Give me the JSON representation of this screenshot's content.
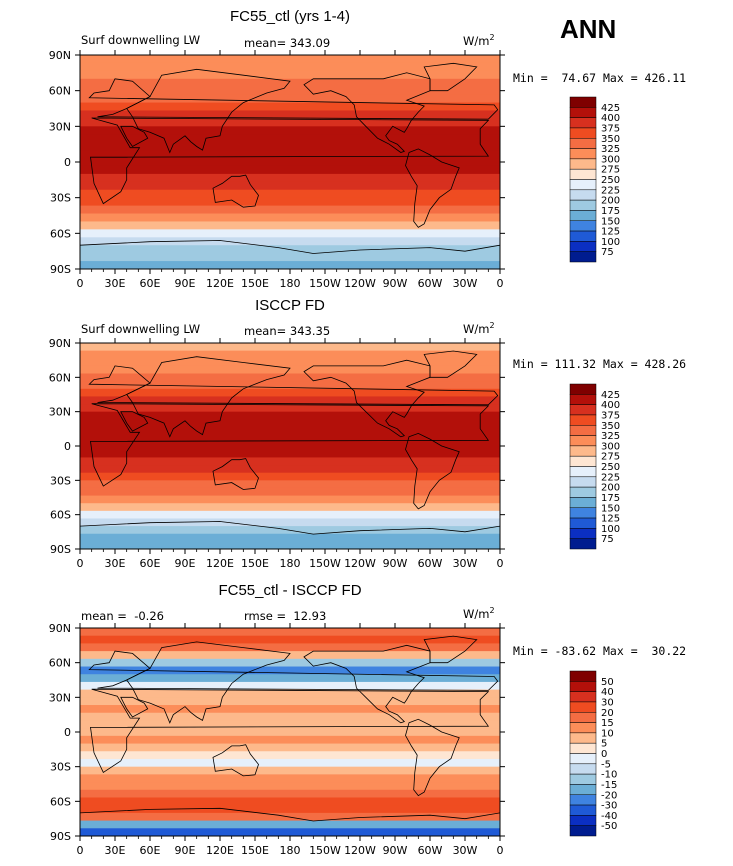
{
  "season": "ANN",
  "panels": [
    {
      "title": "FC55_ctl (yrs 1-4)",
      "left_label": "Surf downwelling LW",
      "center_label": "mean= 343.09",
      "units": "W/m",
      "units_sup": "2",
      "minmax": "Min =  74.67 Max = 426.11",
      "colorbar": {
        "labels": [
          "425",
          "400",
          "375",
          "350",
          "325",
          "300",
          "275",
          "250",
          "225",
          "200",
          "175",
          "150",
          "125",
          "100",
          "75"
        ],
        "colors": [
          "#7f0000",
          "#b3100a",
          "#d7301f",
          "#ef4c21",
          "#f46d43",
          "#fc8d59",
          "#fdb98b",
          "#fee6d3",
          "#e6f0fb",
          "#c6dbef",
          "#9ecae1",
          "#6baed6",
          "#3f83e0",
          "#1f5ad6",
          "#0b2fc2",
          "#001c8f"
        ]
      },
      "zonal_profile": [
        300,
        305,
        315,
        325,
        335,
        345,
        360,
        375,
        390,
        400,
        405,
        410,
        410,
        405,
        400,
        395,
        385,
        370,
        350,
        330,
        305,
        280,
        240,
        210,
        190,
        175,
        170
      ]
    },
    {
      "title": "ISCCP FD",
      "left_label": "Surf downwelling LW",
      "center_label": "mean= 343.35",
      "units": "W/m",
      "units_sup": "2",
      "minmax": "Min = 111.32 Max = 428.26",
      "colorbar": {
        "labels": [
          "425",
          "400",
          "375",
          "350",
          "325",
          "300",
          "275",
          "250",
          "225",
          "200",
          "175",
          "150",
          "125",
          "100",
          "75"
        ],
        "colors": [
          "#7f0000",
          "#b3100a",
          "#d7301f",
          "#ef4c21",
          "#f46d43",
          "#fc8d59",
          "#fdb98b",
          "#fee6d3",
          "#e6f0fb",
          "#c6dbef",
          "#9ecae1",
          "#6baed6",
          "#3f83e0",
          "#1f5ad6",
          "#0b2fc2",
          "#001c8f"
        ]
      },
      "zonal_profile": [
        295,
        300,
        310,
        322,
        333,
        345,
        360,
        376,
        392,
        402,
        408,
        414,
        412,
        406,
        400,
        394,
        383,
        368,
        348,
        328,
        303,
        278,
        238,
        205,
        185,
        172,
        168
      ]
    },
    {
      "title": "FC55_ctl - ISCCP FD",
      "left_label": "mean =  -0.26",
      "center_label": "rmse =  12.93",
      "units": "W/m",
      "units_sup": "2",
      "minmax": "Min = -83.62 Max =  30.22",
      "colorbar": {
        "labels": [
          "50",
          "40",
          "30",
          "20",
          "15",
          "10",
          "5",
          "0",
          "-5",
          "-10",
          "-15",
          "-20",
          "-30",
          "-40",
          "-50"
        ],
        "colors": [
          "#7f0000",
          "#b3100a",
          "#d7301f",
          "#ef4c21",
          "#f46d43",
          "#fc8d59",
          "#fdb98b",
          "#fee6d3",
          "#e6f0fb",
          "#c6dbef",
          "#9ecae1",
          "#6baed6",
          "#3f83e0",
          "#1f5ad6",
          "#0b2fc2",
          "#001c8f"
        ]
      },
      "zonal_profile": [
        15,
        20,
        18,
        5,
        -15,
        -25,
        -20,
        -5,
        5,
        8,
        10,
        5,
        5,
        8,
        10,
        5,
        0,
        -5,
        5,
        10,
        12,
        15,
        20,
        25,
        15,
        -20,
        -35
      ]
    }
  ],
  "axes": {
    "xticks": [
      "0",
      "30E",
      "60E",
      "90E",
      "120E",
      "150E",
      "180",
      "150W",
      "120W",
      "90W",
      "60W",
      "30W",
      "0"
    ],
    "yticks": [
      "90N",
      "60N",
      "30N",
      "0",
      "30S",
      "60S",
      "90S"
    ]
  },
  "chart_data": [
    {
      "type": "heatmap",
      "title": "FC55_ctl (yrs 1-4)",
      "subtitle": "Surf downwelling LW",
      "mean": 343.09,
      "units": "W/m2",
      "min": 74.67,
      "max": 426.11,
      "levels": [
        75,
        100,
        125,
        150,
        175,
        200,
        225,
        250,
        275,
        300,
        325,
        350,
        375,
        400,
        425
      ],
      "xlim": [
        "0",
        "0"
      ],
      "ylim": [
        "90S",
        "90N"
      ]
    },
    {
      "type": "heatmap",
      "title": "ISCCP FD",
      "subtitle": "Surf downwelling LW",
      "mean": 343.35,
      "units": "W/m2",
      "min": 111.32,
      "max": 428.26,
      "levels": [
        75,
        100,
        125,
        150,
        175,
        200,
        225,
        250,
        275,
        300,
        325,
        350,
        375,
        400,
        425
      ],
      "xlim": [
        "0",
        "0"
      ],
      "ylim": [
        "90S",
        "90N"
      ]
    },
    {
      "type": "heatmap",
      "title": "FC55_ctl - ISCCP FD",
      "mean": -0.26,
      "rmse": 12.93,
      "units": "W/m2",
      "min": -83.62,
      "max": 30.22,
      "levels": [
        -50,
        -40,
        -30,
        -20,
        -15,
        -10,
        -5,
        0,
        5,
        10,
        15,
        20,
        30,
        40,
        50
      ],
      "xlim": [
        "0",
        "0"
      ],
      "ylim": [
        "90S",
        "90N"
      ]
    }
  ]
}
